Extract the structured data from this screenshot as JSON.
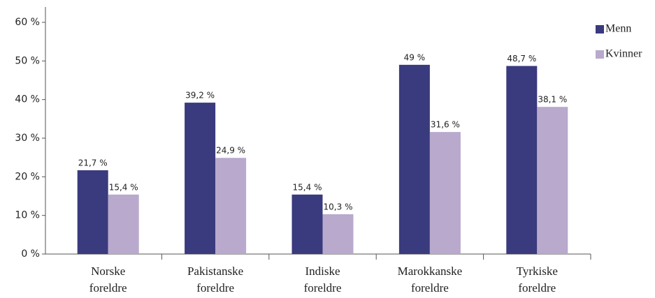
{
  "chart_data": {
    "type": "bar",
    "categories": [
      "Norske foreldre",
      "Pakistanske foreldre",
      "Indiske foreldre",
      "Marokkanske foreldre",
      "Tyrkiske foreldre"
    ],
    "series": [
      {
        "name": "Menn",
        "color": "#3a3a7e",
        "values": [
          21.7,
          39.2,
          15.4,
          49,
          48.7
        ],
        "value_labels": [
          "21,7 %",
          "39,2 %",
          "15,4 %",
          "49 %",
          "48,7 %"
        ]
      },
      {
        "name": "Kvinner",
        "color": "#b8a9cd",
        "values": [
          15.4,
          24.9,
          10.3,
          31.6,
          38.1
        ],
        "value_labels": [
          "15,4 %",
          "24,9 %",
          "10,3 %",
          "31,6 %",
          "38,1 %"
        ]
      }
    ],
    "ylim": [
      0,
      60
    ],
    "yticks": [
      {
        "value": 0,
        "label": "0 %"
      },
      {
        "value": 10,
        "label": "10 %"
      },
      {
        "value": 20,
        "label": "20 %"
      },
      {
        "value": 30,
        "label": "30 %"
      },
      {
        "value": 40,
        "label": "40 %"
      },
      {
        "value": 50,
        "label": "50 %"
      },
      {
        "value": 60,
        "label": "60 %"
      }
    ],
    "legend": "top-right"
  }
}
